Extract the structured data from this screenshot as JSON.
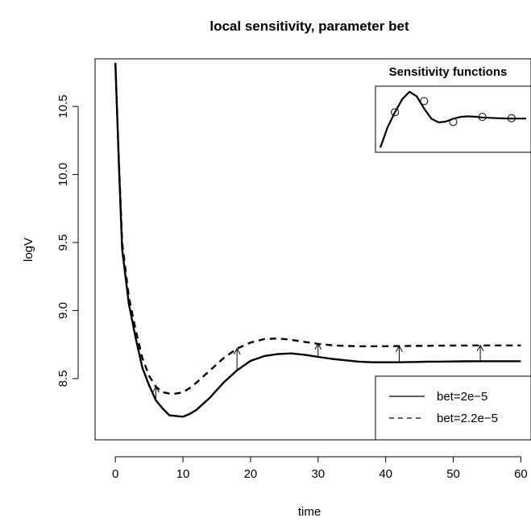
{
  "chart_data": {
    "type": "line",
    "title": "local sensitivity, parameter bet",
    "xlabel": "time",
    "ylabel": "logV",
    "xlim": [
      -3,
      61.5
    ],
    "ylim": [
      8.05,
      10.85
    ],
    "x_ticks": [
      0,
      10,
      20,
      30,
      40,
      50,
      60
    ],
    "y_ticks": [
      8.5,
      9.0,
      9.5,
      10.0,
      10.5
    ],
    "x_tick_labels": [
      "0",
      "10",
      "20",
      "30",
      "40",
      "50",
      "60"
    ],
    "y_tick_labels": [
      "8.5",
      "9.0",
      "9.5",
      "10.0",
      "10.5"
    ],
    "grid": false,
    "series": [
      {
        "name": "bet=2e−5",
        "line_style": "solid",
        "x": [
          0,
          0.5,
          1,
          2,
          3,
          4,
          5,
          6,
          7,
          8,
          9,
          10,
          11,
          12,
          14,
          16,
          18,
          20,
          22,
          24,
          26,
          28,
          30,
          32,
          34,
          36,
          38,
          40,
          42,
          44,
          46,
          48,
          50,
          52,
          54,
          56,
          58,
          60
        ],
        "y": [
          10.82,
          10.1,
          9.45,
          9.05,
          8.8,
          8.58,
          8.45,
          8.34,
          8.28,
          8.23,
          8.225,
          8.22,
          8.24,
          8.27,
          8.36,
          8.47,
          8.56,
          8.63,
          8.665,
          8.68,
          8.685,
          8.675,
          8.66,
          8.645,
          8.635,
          8.625,
          8.62,
          8.62,
          8.62,
          8.622,
          8.624,
          8.625,
          8.626,
          8.627,
          8.628,
          8.628,
          8.628,
          8.628
        ]
      },
      {
        "name": "bet=2.2e−5",
        "line_style": "dashed",
        "x": [
          0,
          0.5,
          1,
          2,
          3,
          4,
          5,
          6,
          7,
          8,
          9,
          10,
          11,
          12,
          14,
          16,
          18,
          20,
          22,
          24,
          26,
          28,
          30,
          32,
          34,
          36,
          38,
          40,
          42,
          44,
          46,
          48,
          50,
          52,
          54,
          56,
          58,
          60
        ],
        "y": [
          10.82,
          10.12,
          9.5,
          9.1,
          8.86,
          8.65,
          8.52,
          8.44,
          8.4,
          8.39,
          8.39,
          8.4,
          8.43,
          8.47,
          8.56,
          8.65,
          8.72,
          8.765,
          8.79,
          8.795,
          8.785,
          8.77,
          8.755,
          8.745,
          8.74,
          8.738,
          8.738,
          8.738,
          8.739,
          8.74,
          8.741,
          8.742,
          8.743,
          8.743,
          8.744,
          8.744,
          8.744,
          8.744
        ]
      }
    ],
    "arrows": [
      {
        "x": 6,
        "y_from": 8.34,
        "y_to": 8.44
      },
      {
        "x": 18,
        "y_from": 8.56,
        "y_to": 8.72
      },
      {
        "x": 30,
        "y_from": 8.66,
        "y_to": 8.755
      },
      {
        "x": 42,
        "y_from": 8.62,
        "y_to": 8.739
      },
      {
        "x": 54,
        "y_from": 8.628,
        "y_to": 8.744
      }
    ],
    "legend": {
      "position": "bottom-right",
      "entries": [
        "bet=2e−5",
        "bet=2.2e−5"
      ],
      "line_styles": [
        "solid",
        "dashed"
      ]
    },
    "inset": {
      "title": "Sensitivity functions",
      "position": "top-right",
      "type": "line",
      "x": [
        0,
        0.15,
        0.3,
        0.45,
        0.6,
        0.75,
        0.9,
        1.05,
        1.2,
        1.35,
        1.5,
        1.65,
        1.8,
        1.95,
        2.1,
        2.25,
        2.4,
        2.55,
        2.7,
        2.85,
        3.0
      ],
      "y": [
        -1.0,
        0.1,
        0.9,
        1.6,
        2.0,
        1.75,
        1.1,
        0.55,
        0.35,
        0.4,
        0.55,
        0.65,
        0.68,
        0.66,
        0.62,
        0.6,
        0.58,
        0.57,
        0.56,
        0.56,
        0.56
      ],
      "markers_x": [
        0.3,
        0.9,
        1.5,
        2.1,
        2.7
      ],
      "markers_y": [
        0.9,
        1.5,
        0.38,
        0.65,
        0.58
      ],
      "xlim": [
        -0.1,
        3.1
      ],
      "ylim": [
        -1.25,
        2.3
      ]
    }
  }
}
